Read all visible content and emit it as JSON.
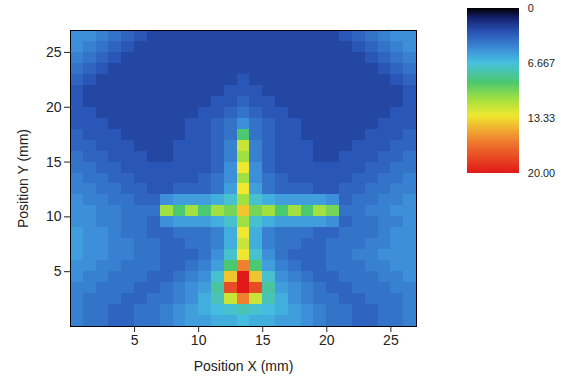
{
  "chart_data": {
    "type": "heatmap",
    "x_label": "Position X (mm)",
    "y_label": "Position Y (mm)",
    "xlim": [
      0,
      27
    ],
    "ylim": [
      0,
      27
    ],
    "xticks": [
      5,
      10,
      15,
      20,
      25
    ],
    "yticks": [
      5,
      10,
      15,
      20,
      25
    ],
    "cells": {
      "x": [
        0.5,
        1.5,
        2.5,
        3.5,
        4.5,
        5.5,
        6.5,
        7.5,
        8.5,
        9.5,
        10.5,
        11.5,
        12.5,
        13.5,
        14.5,
        15.5,
        16.5,
        17.5,
        18.5,
        19.5,
        20.5,
        21.5,
        22.5,
        23.5,
        24.5,
        25.5,
        26.5
      ],
      "y": [
        26.5,
        25.5,
        24.5,
        23.5,
        22.5,
        21.5,
        20.5,
        19.5,
        18.5,
        17.5,
        16.5,
        15.5,
        14.5,
        13.5,
        12.5,
        11.5,
        10.5,
        9.5,
        8.5,
        7.5,
        6.5,
        5.5,
        4.5,
        3.5,
        2.5,
        1.5,
        0.5
      ],
      "values": [
        [
          5,
          5,
          4.5,
          4,
          3.5,
          3,
          2.5,
          2.5,
          2.5,
          2.5,
          2.5,
          2.5,
          2.5,
          2.5,
          2.5,
          2.5,
          2.5,
          2.5,
          2.5,
          2.5,
          2.5,
          3,
          3.5,
          4,
          4.5,
          5,
          5
        ],
        [
          5,
          4.5,
          4,
          3.5,
          3,
          2.5,
          2.5,
          2.5,
          2.5,
          2.5,
          2.5,
          2.5,
          2.5,
          2.5,
          2.5,
          2.5,
          2.5,
          2.5,
          2.5,
          2.5,
          2.5,
          2.5,
          3,
          3.5,
          4,
          4.5,
          5
        ],
        [
          4.5,
          4,
          3.5,
          3,
          2.5,
          2.5,
          2.5,
          2.5,
          2.5,
          2.5,
          2.5,
          2.5,
          2.5,
          2.5,
          2.5,
          2.5,
          2.5,
          2.5,
          2.5,
          2.5,
          2.5,
          2.5,
          2.5,
          3,
          3.5,
          4,
          4.5
        ],
        [
          4,
          3.5,
          3,
          2.5,
          2.5,
          2.5,
          2.5,
          2.5,
          2.5,
          2.5,
          2.5,
          2.5,
          2.5,
          2.5,
          2.5,
          2.5,
          2.5,
          2.5,
          2.5,
          2.5,
          2.5,
          2.5,
          2.5,
          2.5,
          3,
          3.5,
          4
        ],
        [
          3.5,
          3,
          2.5,
          2.5,
          2.5,
          2.5,
          2.5,
          2.5,
          2.5,
          2.5,
          2.5,
          2.5,
          2.5,
          3,
          2.5,
          2.5,
          2.5,
          2.5,
          2.5,
          2.5,
          2.5,
          2.5,
          2.5,
          2.5,
          2.5,
          3,
          3.5
        ],
        [
          3,
          2.5,
          2.5,
          2.5,
          2.5,
          2.5,
          2.5,
          2.5,
          2.5,
          2.5,
          2.5,
          2.5,
          3,
          3,
          3,
          2.5,
          2.5,
          2.5,
          2.5,
          2.5,
          2.5,
          2.5,
          2.5,
          2.5,
          2.5,
          2.5,
          3
        ],
        [
          3,
          2.5,
          2.5,
          2.5,
          2.5,
          2.5,
          2.5,
          2.5,
          2.5,
          2.5,
          2.5,
          3,
          3,
          3.5,
          3,
          3,
          2.5,
          2.5,
          2.5,
          2.5,
          2.5,
          2.5,
          2.5,
          2.5,
          2.5,
          2.5,
          3
        ],
        [
          3,
          3,
          2.5,
          2.5,
          2.5,
          2.5,
          2.5,
          2.5,
          2.5,
          2.5,
          3,
          3,
          3.5,
          4,
          3.5,
          3,
          3,
          2.5,
          2.5,
          2.5,
          2.5,
          2.5,
          2.5,
          2.5,
          2.5,
          3,
          3
        ],
        [
          3,
          3,
          3,
          2.5,
          2.5,
          2.5,
          2.5,
          2.5,
          2.5,
          3,
          3,
          3.5,
          4,
          5,
          4,
          3.5,
          3,
          3,
          2.5,
          2.5,
          2.5,
          2.5,
          2.5,
          2.5,
          3,
          3,
          3
        ],
        [
          3.5,
          3,
          3,
          3,
          2.5,
          2.5,
          2.5,
          2.5,
          2.5,
          3,
          3,
          3.5,
          4,
          9,
          4,
          3.5,
          3,
          3,
          2.5,
          2.5,
          2.5,
          2.5,
          2.5,
          3,
          3,
          3,
          3.5
        ],
        [
          3.5,
          3.5,
          3,
          3,
          3,
          2.5,
          2.5,
          2.5,
          3,
          3,
          3,
          3.5,
          4.5,
          12,
          4.5,
          3.5,
          3,
          3,
          3,
          2.5,
          2.5,
          2.5,
          3,
          3,
          3,
          3.5,
          3.5
        ],
        [
          4,
          3.5,
          3.5,
          3,
          3,
          3,
          2.5,
          2.5,
          3,
          3,
          3,
          3.5,
          4.5,
          11,
          4.5,
          3.5,
          3,
          3,
          3,
          2.5,
          2.5,
          3,
          3,
          3,
          3.5,
          3.5,
          4
        ],
        [
          4,
          4,
          3.5,
          3.5,
          3,
          3,
          3,
          3,
          3,
          3,
          3,
          3.5,
          5,
          13,
          5,
          3.5,
          3,
          3,
          3,
          3,
          3,
          3,
          3,
          3.5,
          3.5,
          4,
          4
        ],
        [
          4.5,
          4,
          4,
          3.5,
          3.5,
          3,
          3,
          3,
          3,
          3,
          3.5,
          4,
          5,
          11,
          5,
          4,
          3.5,
          3,
          3,
          3,
          3,
          3,
          3.5,
          3.5,
          4,
          4,
          4.5
        ],
        [
          4.5,
          4.5,
          4,
          4,
          3.5,
          3.5,
          3,
          3,
          3.5,
          3.5,
          3.5,
          4,
          5.5,
          13,
          5.5,
          4,
          3.5,
          3.5,
          3.5,
          3,
          3,
          3.5,
          3.5,
          4,
          4,
          4.5,
          4.5
        ],
        [
          5,
          4.5,
          4.5,
          4,
          4,
          3.5,
          3.5,
          5,
          5.5,
          5.5,
          5.5,
          6,
          7,
          11,
          7,
          6,
          5.5,
          5.5,
          5.5,
          5.5,
          5,
          3.5,
          4,
          4,
          4.5,
          4.5,
          5
        ],
        [
          5,
          5,
          4.5,
          4.5,
          4,
          4,
          4,
          11,
          9,
          11,
          9,
          11,
          10,
          14,
          10,
          11,
          9,
          11,
          9,
          11,
          10,
          4,
          4,
          4.5,
          4.5,
          5,
          5
        ],
        [
          5,
          5,
          4.5,
          4.5,
          4,
          4,
          3.5,
          5,
          5.5,
          5.5,
          5.5,
          6,
          7,
          11,
          7,
          6,
          5.5,
          5.5,
          5.5,
          5.5,
          5,
          3.5,
          4,
          4,
          4.5,
          4.5,
          5
        ],
        [
          5.5,
          5,
          5,
          4.5,
          4,
          4,
          3.5,
          3.5,
          4,
          4,
          4,
          4.5,
          6,
          13,
          6,
          4.5,
          4,
          4,
          4,
          3.5,
          3.5,
          4,
          4,
          4,
          4.5,
          5,
          5
        ],
        [
          5.5,
          5,
          5,
          4.5,
          4.5,
          4,
          4,
          3.5,
          3.5,
          4,
          4,
          4.5,
          6,
          12,
          6,
          4.5,
          4,
          4,
          3.5,
          3.5,
          4,
          4,
          4,
          4.5,
          4.5,
          5,
          5
        ],
        [
          5.5,
          5,
          5,
          4.5,
          4.5,
          4,
          4,
          3.5,
          3.5,
          3.5,
          4,
          5,
          7,
          13,
          7,
          5,
          4,
          3.5,
          3.5,
          3.5,
          4,
          4,
          4.5,
          4.5,
          5,
          5,
          5
        ],
        [
          5,
          5,
          4.5,
          4.5,
          4,
          4,
          4,
          3.5,
          3.5,
          4,
          4.5,
          5.5,
          9,
          16,
          9,
          5.5,
          4.5,
          4,
          3.5,
          3.5,
          4,
          4,
          4,
          4.5,
          4.5,
          5,
          5
        ],
        [
          5,
          4.5,
          4.5,
          4,
          4,
          4,
          3.5,
          3.5,
          4,
          4.5,
          5,
          7,
          14,
          20,
          14,
          7,
          5,
          4.5,
          4,
          3.5,
          3.5,
          4,
          4,
          4,
          4.5,
          4.5,
          5
        ],
        [
          4.5,
          4.5,
          4,
          4,
          4,
          3.5,
          3.5,
          4,
          4.5,
          5,
          5.5,
          8,
          18,
          20,
          18,
          8,
          5.5,
          5,
          4.5,
          4,
          3.5,
          3.5,
          4,
          4,
          4,
          4.5,
          4.5
        ],
        [
          4.5,
          4,
          4,
          4,
          3.5,
          3.5,
          4,
          4,
          4.5,
          5,
          6,
          7.5,
          12,
          16,
          12,
          7.5,
          6,
          5,
          4.5,
          4,
          4,
          3.5,
          3.5,
          4,
          4,
          4,
          4.5
        ],
        [
          4.5,
          4,
          4,
          3.5,
          3.5,
          4,
          4,
          4.5,
          5,
          5.5,
          6,
          6.5,
          7,
          7.5,
          7,
          6.5,
          6,
          5.5,
          5,
          4.5,
          4,
          4,
          3.5,
          3.5,
          4,
          4,
          4.5
        ],
        [
          4.5,
          4,
          4,
          3.5,
          3.5,
          4,
          4,
          4.5,
          5,
          5.5,
          5.5,
          6,
          6,
          6.5,
          6,
          6,
          5.5,
          5.5,
          5,
          4.5,
          4,
          4,
          3.5,
          3.5,
          4,
          4,
          4.5
        ]
      ]
    },
    "colorbar": {
      "range": [
        0,
        20
      ],
      "ticks": [
        0,
        6.667,
        13.33,
        {
          "value": 20,
          "label": "20.00"
        }
      ]
    }
  }
}
